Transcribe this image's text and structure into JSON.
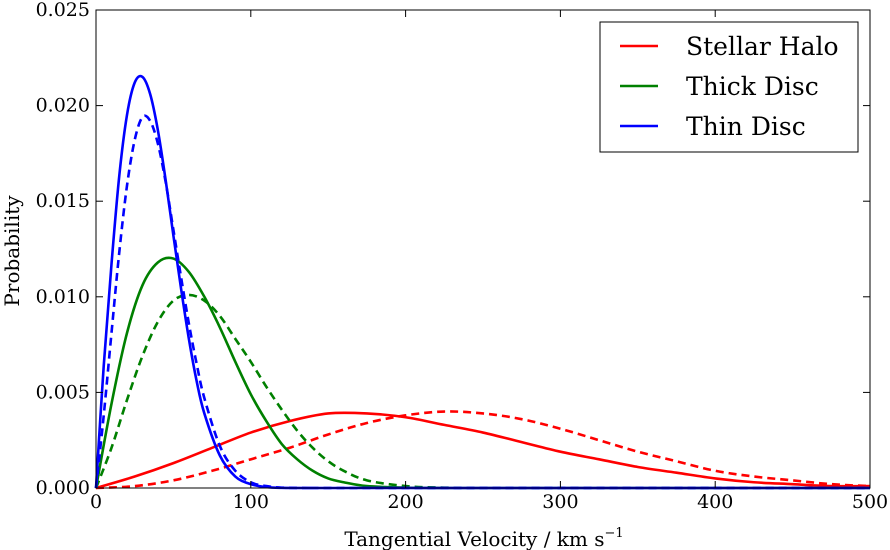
{
  "chart_data": {
    "type": "line",
    "title": "",
    "xlabel": "Tangential Velocity / km s",
    "xlabel_exponent": "−1",
    "ylabel": "Probability",
    "xlim": [
      0,
      500
    ],
    "ylim": [
      0,
      0.025
    ],
    "xticks": [
      0,
      100,
      200,
      300,
      400,
      500
    ],
    "xtick_labels": [
      "0",
      "100",
      "200",
      "300",
      "400",
      "500"
    ],
    "yticks": [
      0,
      0.005,
      0.01,
      0.015,
      0.02,
      0.025
    ],
    "ytick_labels": [
      "0.000",
      "0.005",
      "0.010",
      "0.015",
      "0.020",
      "0.025"
    ],
    "grid": false,
    "legend_position": "top-right",
    "legend": [
      {
        "name": "Stellar Halo",
        "color": "#ff0000"
      },
      {
        "name": "Thick Disc",
        "color": "#008000"
      },
      {
        "name": "Thin Disc",
        "color": "#0000ff"
      }
    ],
    "series": [
      {
        "name": "Stellar Halo",
        "style": "solid",
        "color": "#ff0000",
        "x": [
          0,
          25,
          50,
          75,
          100,
          125,
          150,
          175,
          200,
          225,
          250,
          275,
          300,
          325,
          350,
          375,
          400,
          425,
          450,
          475,
          500
        ],
        "y": [
          0,
          0.0006,
          0.0013,
          0.0021,
          0.0029,
          0.0035,
          0.0039,
          0.0039,
          0.0037,
          0.0033,
          0.0029,
          0.0024,
          0.0019,
          0.0015,
          0.0011,
          0.0008,
          0.0005,
          0.0003,
          0.0002,
          0.0001,
          0.0001
        ]
      },
      {
        "name": "Stellar Halo (dashed)",
        "style": "dashed",
        "color": "#ff0000",
        "x": [
          0,
          25,
          50,
          75,
          100,
          125,
          150,
          175,
          200,
          225,
          250,
          275,
          300,
          325,
          350,
          375,
          400,
          425,
          450,
          475,
          500
        ],
        "y": [
          0,
          0.0001,
          0.0004,
          0.0009,
          0.0015,
          0.0021,
          0.0028,
          0.0034,
          0.0038,
          0.004,
          0.0039,
          0.0036,
          0.0031,
          0.0025,
          0.0019,
          0.0014,
          0.0009,
          0.0006,
          0.0004,
          0.0002,
          0.0001
        ]
      },
      {
        "name": "Thick Disc",
        "style": "solid",
        "color": "#008000",
        "x": [
          0,
          10,
          20,
          30,
          40,
          50,
          60,
          70,
          80,
          90,
          100,
          110,
          120,
          130,
          140,
          150,
          160,
          175,
          200,
          225,
          250,
          300,
          500
        ],
        "y": [
          0,
          0.0044,
          0.0081,
          0.0106,
          0.0118,
          0.012,
          0.0113,
          0.01,
          0.0084,
          0.0066,
          0.0049,
          0.0035,
          0.0023,
          0.0015,
          0.0009,
          0.0005,
          0.0003,
          0.0001,
          2e-05,
          0,
          0,
          0,
          0
        ]
      },
      {
        "name": "Thick Disc (dashed)",
        "style": "dashed",
        "color": "#008000",
        "x": [
          0,
          10,
          20,
          30,
          40,
          50,
          60,
          70,
          80,
          90,
          100,
          110,
          120,
          130,
          140,
          150,
          160,
          175,
          200,
          225,
          250,
          300,
          500
        ],
        "y": [
          0,
          0.0021,
          0.0046,
          0.0069,
          0.0087,
          0.0098,
          0.0101,
          0.0098,
          0.009,
          0.0078,
          0.0066,
          0.0053,
          0.0041,
          0.003,
          0.0021,
          0.0014,
          0.0009,
          0.0004,
          0.0001,
          2e-05,
          0,
          0,
          0
        ]
      },
      {
        "name": "Thin Disc",
        "style": "solid",
        "color": "#0000ff",
        "x": [
          0,
          5,
          10,
          15,
          20,
          25,
          30,
          35,
          40,
          45,
          50,
          55,
          60,
          65,
          70,
          80,
          90,
          100,
          110,
          120,
          140,
          170,
          500
        ],
        "y": [
          0,
          0.0064,
          0.0117,
          0.0163,
          0.0195,
          0.0212,
          0.0215,
          0.0206,
          0.0187,
          0.0161,
          0.0132,
          0.0104,
          0.0078,
          0.0056,
          0.0039,
          0.0017,
          0.0006,
          0.0002,
          5e-05,
          1e-05,
          0,
          0,
          0
        ]
      },
      {
        "name": "Thin Disc (dashed)",
        "style": "dashed",
        "color": "#0000ff",
        "x": [
          0,
          5,
          10,
          15,
          20,
          25,
          30,
          35,
          40,
          45,
          50,
          55,
          60,
          65,
          70,
          80,
          90,
          100,
          110,
          120,
          140,
          170,
          500
        ],
        "y": [
          0,
          0.0038,
          0.0081,
          0.0123,
          0.0158,
          0.0182,
          0.0194,
          0.0192,
          0.018,
          0.016,
          0.0135,
          0.011,
          0.0086,
          0.0065,
          0.0047,
          0.0022,
          0.0009,
          0.0003,
          0.0001,
          2e-05,
          0,
          0,
          0
        ]
      }
    ]
  }
}
